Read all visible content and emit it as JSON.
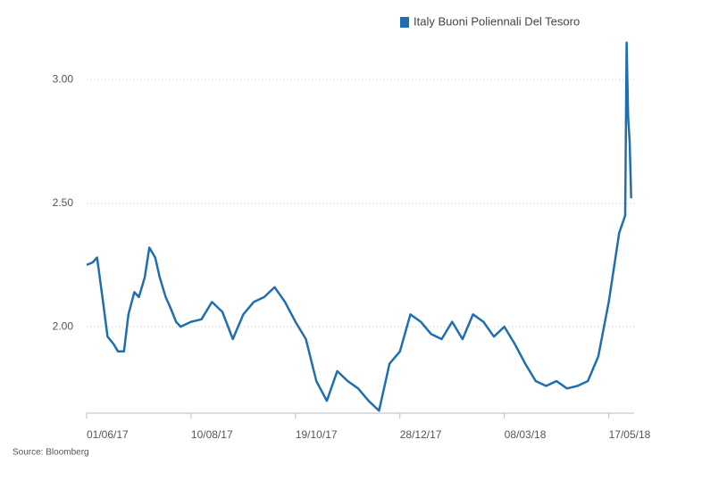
{
  "chart_data": {
    "type": "line",
    "source": "Source: Bloomberg",
    "x": [
      "2017-06-01",
      "2017-06-05",
      "2017-06-08",
      "2017-06-12",
      "2017-06-15",
      "2017-06-19",
      "2017-06-22",
      "2017-06-26",
      "2017-06-29",
      "2017-07-03",
      "2017-07-06",
      "2017-07-10",
      "2017-07-13",
      "2017-07-17",
      "2017-07-20",
      "2017-07-24",
      "2017-07-27",
      "2017-07-31",
      "2017-08-03",
      "2017-08-10",
      "2017-08-17",
      "2017-08-24",
      "2017-08-31",
      "2017-09-07",
      "2017-09-14",
      "2017-09-21",
      "2017-09-28",
      "2017-10-05",
      "2017-10-12",
      "2017-10-19",
      "2017-10-26",
      "2017-11-02",
      "2017-11-09",
      "2017-11-16",
      "2017-11-23",
      "2017-11-30",
      "2017-12-07",
      "2017-12-14",
      "2017-12-21",
      "2017-12-28",
      "2018-01-04",
      "2018-01-11",
      "2018-01-18",
      "2018-01-25",
      "2018-02-01",
      "2018-02-08",
      "2018-02-15",
      "2018-02-22",
      "2018-03-01",
      "2018-03-08",
      "2018-03-15",
      "2018-03-22",
      "2018-03-29",
      "2018-04-05",
      "2018-04-12",
      "2018-04-19",
      "2018-04-26",
      "2018-05-03",
      "2018-05-10",
      "2018-05-17",
      "2018-05-24",
      "2018-05-28",
      "2018-05-29",
      "2018-05-30",
      "2018-05-31",
      "2018-06-01"
    ],
    "series": [
      {
        "name": "Italy Buoni Poliennali Del Tesoro",
        "color": "#1f6fb0",
        "values": [
          2.25,
          2.26,
          2.28,
          2.1,
          1.96,
          1.93,
          1.9,
          1.9,
          2.05,
          2.14,
          2.12,
          2.2,
          2.32,
          2.28,
          2.2,
          2.12,
          2.08,
          2.02,
          2.0,
          2.02,
          2.03,
          2.1,
          2.06,
          1.95,
          2.05,
          2.1,
          2.12,
          2.16,
          2.1,
          2.02,
          1.95,
          1.78,
          1.7,
          1.82,
          1.78,
          1.75,
          1.7,
          1.66,
          1.85,
          1.9,
          2.05,
          2.02,
          1.97,
          1.95,
          2.02,
          1.95,
          2.05,
          2.02,
          1.96,
          2.0,
          1.93,
          1.85,
          1.78,
          1.76,
          1.78,
          1.75,
          1.76,
          1.78,
          1.88,
          2.1,
          2.38,
          2.45,
          3.15,
          2.85,
          2.75,
          2.52
        ]
      }
    ],
    "xlim": [
      "2017-06-01",
      "2018-06-03"
    ],
    "xticks": [
      {
        "value": "2017-06-01",
        "label": "01/06/17"
      },
      {
        "value": "2017-08-10",
        "label": "10/08/17"
      },
      {
        "value": "2017-10-19",
        "label": "19/10/17"
      },
      {
        "value": "2017-12-28",
        "label": "28/12/17"
      },
      {
        "value": "2018-03-08",
        "label": "08/03/18"
      },
      {
        "value": "2018-05-17",
        "label": "17/05/18"
      }
    ],
    "ylim": [
      1.65,
      3.16
    ],
    "yticks": [
      {
        "value": 2,
        "label": "2.00"
      },
      {
        "value": 2.5,
        "label": "2.50"
      },
      {
        "value": 3,
        "label": "3.00"
      }
    ],
    "grid": true
  }
}
